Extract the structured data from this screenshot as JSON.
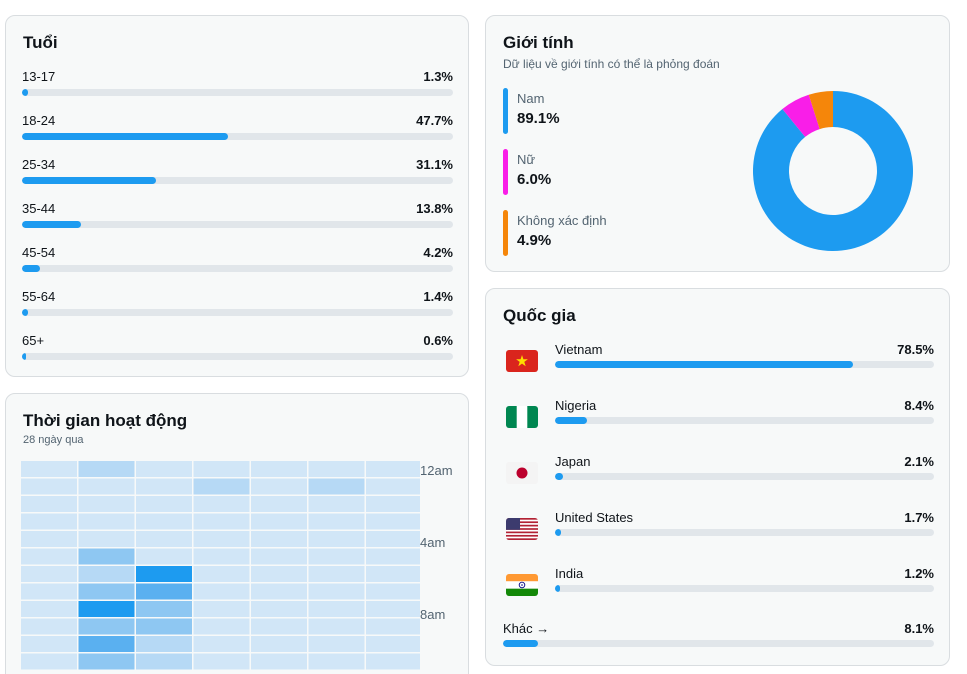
{
  "age": {
    "title": "Tuổi",
    "rows": [
      {
        "label": "13-17",
        "value": "1.3%",
        "fraction": 0.013
      },
      {
        "label": "18-24",
        "value": "47.7%",
        "fraction": 0.477
      },
      {
        "label": "25-34",
        "value": "31.1%",
        "fraction": 0.311
      },
      {
        "label": "35-44",
        "value": "13.8%",
        "fraction": 0.138
      },
      {
        "label": "45-54",
        "value": "4.2%",
        "fraction": 0.042
      },
      {
        "label": "55-64",
        "value": "1.4%",
        "fraction": 0.014
      },
      {
        "label": "65+",
        "value": "0.6%",
        "fraction": 0.006
      }
    ]
  },
  "gender": {
    "title": "Giới tính",
    "subtitle": "Dữ liệu về giới tính có thể là phỏng đoán",
    "items": [
      {
        "label": "Nam",
        "value": "89.1%",
        "fraction": 0.891,
        "color": "#1d9bf0"
      },
      {
        "label": "Nữ",
        "value": "6.0%",
        "fraction": 0.06,
        "color": "#f91ee8"
      },
      {
        "label": "Không xác định",
        "value": "4.9%",
        "fraction": 0.049,
        "color": "#f5860a"
      }
    ]
  },
  "country": {
    "title": "Quốc gia",
    "rows": [
      {
        "name": "Vietnam",
        "value": "78.5%",
        "fraction": 0.785,
        "flag": "vietnam-flag-icon"
      },
      {
        "name": "Nigeria",
        "value": "8.4%",
        "fraction": 0.084,
        "flag": "nigeria-flag-icon"
      },
      {
        "name": "Japan",
        "value": "2.1%",
        "fraction": 0.021,
        "flag": "japan-flag-icon"
      },
      {
        "name": "United States",
        "value": "1.7%",
        "fraction": 0.017,
        "flag": "usa-flag-icon"
      },
      {
        "name": "India",
        "value": "1.2%",
        "fraction": 0.012,
        "flag": "india-flag-icon"
      }
    ],
    "other": {
      "label": "Khác →",
      "value": "8.1%",
      "fraction": 0.081
    }
  },
  "activity": {
    "title": "Thời gian hoạt động",
    "subtitle": "28 ngày qua",
    "hour_labels": [
      "12am",
      "4am",
      "8am"
    ],
    "levels": [
      [
        1,
        2,
        1,
        1,
        1,
        1,
        1
      ],
      [
        1,
        1,
        1,
        2,
        1,
        2,
        1
      ],
      [
        1,
        1,
        1,
        1,
        1,
        1,
        1
      ],
      [
        1,
        1,
        1,
        1,
        1,
        1,
        1
      ],
      [
        1,
        1,
        1,
        1,
        1,
        1,
        1
      ],
      [
        1,
        3,
        1,
        1,
        1,
        1,
        1
      ],
      [
        1,
        2,
        5,
        1,
        1,
        1,
        1
      ],
      [
        1,
        3,
        4,
        1,
        1,
        1,
        1
      ],
      [
        1,
        5,
        3,
        1,
        1,
        1,
        1
      ],
      [
        1,
        3,
        3,
        1,
        1,
        1,
        1
      ],
      [
        1,
        4,
        2,
        1,
        1,
        1,
        1
      ],
      [
        1,
        3,
        2,
        1,
        1,
        1,
        1
      ]
    ],
    "palette": [
      "#ffffff",
      "#d1e6f7",
      "#b6d9f5",
      "#8ec7f2",
      "#5ab0f0",
      "#1d9bf0"
    ]
  }
}
